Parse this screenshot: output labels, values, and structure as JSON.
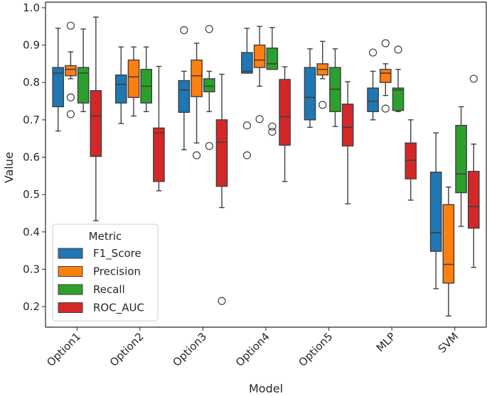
{
  "chart_data": {
    "type": "boxplot",
    "xlabel": "Model",
    "ylabel": "Value",
    "ylim": [
      0.145,
      1.015
    ],
    "yticks": [
      0.2,
      0.3,
      0.4,
      0.5,
      0.6,
      0.7,
      0.8,
      0.9,
      1.0
    ],
    "ytick_labels": [
      "0.2",
      "0.3",
      "0.4",
      "0.5",
      "0.6",
      "0.7",
      "0.8",
      "0.9",
      "1.0"
    ],
    "categories": [
      "Option1",
      "Option2",
      "Option3",
      "Option4",
      "Option5",
      "MLP",
      "SVM"
    ],
    "legend": {
      "title": "Metric",
      "position": "lower-left"
    },
    "series": [
      {
        "name": "F1_Score",
        "color": "#1f77b4",
        "boxes": [
          {
            "whislo": 0.67,
            "q1": 0.735,
            "med": 0.825,
            "q3": 0.84,
            "whishi": 0.945,
            "fliers": []
          },
          {
            "whislo": 0.69,
            "q1": 0.745,
            "med": 0.795,
            "q3": 0.82,
            "whishi": 0.895,
            "fliers": []
          },
          {
            "whislo": 0.62,
            "q1": 0.72,
            "med": 0.78,
            "q3": 0.805,
            "whishi": 0.83,
            "fliers": [
              0.94
            ]
          },
          {
            "whislo": 0.825,
            "q1": 0.825,
            "med": 0.83,
            "q3": 0.88,
            "whishi": 0.945,
            "fliers": [
              0.685,
              0.605
            ]
          },
          {
            "whislo": 0.68,
            "q1": 0.7,
            "med": 0.76,
            "q3": 0.84,
            "whishi": 0.89,
            "fliers": []
          },
          {
            "whislo": 0.7,
            "q1": 0.722,
            "med": 0.75,
            "q3": 0.785,
            "whishi": 0.83,
            "fliers": [
              0.88
            ]
          },
          {
            "whislo": 0.248,
            "q1": 0.348,
            "med": 0.398,
            "q3": 0.56,
            "whishi": 0.665,
            "fliers": []
          }
        ]
      },
      {
        "name": "Precision",
        "color": "#ff7f0e",
        "boxes": [
          {
            "whislo": 0.81,
            "q1": 0.818,
            "med": 0.835,
            "q3": 0.845,
            "whishi": 0.882,
            "fliers": [
              0.952,
              0.76,
              0.715
            ]
          },
          {
            "whislo": 0.71,
            "q1": 0.76,
            "med": 0.815,
            "q3": 0.86,
            "whishi": 0.895,
            "fliers": []
          },
          {
            "whislo": 0.638,
            "q1": 0.762,
            "med": 0.818,
            "q3": 0.86,
            "whishi": 0.905,
            "fliers": [
              0.605
            ]
          },
          {
            "whislo": 0.79,
            "q1": 0.84,
            "med": 0.86,
            "q3": 0.9,
            "whishi": 0.95,
            "fliers": [
              0.702
            ]
          },
          {
            "whislo": 0.81,
            "q1": 0.82,
            "med": 0.835,
            "q3": 0.85,
            "whishi": 0.91,
            "fliers": [
              0.74
            ]
          },
          {
            "whislo": 0.765,
            "q1": 0.8,
            "med": 0.825,
            "q3": 0.835,
            "whishi": 0.85,
            "fliers": [
              0.905,
              0.73
            ]
          },
          {
            "whislo": 0.175,
            "q1": 0.263,
            "med": 0.313,
            "q3": 0.473,
            "whishi": 0.52,
            "fliers": []
          }
        ]
      },
      {
        "name": "Recall",
        "color": "#2ca02c",
        "boxes": [
          {
            "whislo": 0.722,
            "q1": 0.745,
            "med": 0.825,
            "q3": 0.84,
            "whishi": 0.943,
            "fliers": []
          },
          {
            "whislo": 0.722,
            "q1": 0.745,
            "med": 0.79,
            "q3": 0.835,
            "whishi": 0.895,
            "fliers": []
          },
          {
            "whislo": 0.722,
            "q1": 0.775,
            "med": 0.79,
            "q3": 0.81,
            "whishi": 0.83,
            "fliers": [
              0.943,
              0.63
            ]
          },
          {
            "whislo": 0.835,
            "q1": 0.835,
            "med": 0.85,
            "q3": 0.892,
            "whishi": 0.947,
            "fliers": [
              0.682,
              0.668
            ]
          },
          {
            "whislo": 0.682,
            "q1": 0.722,
            "med": 0.782,
            "q3": 0.84,
            "whishi": 0.89,
            "fliers": []
          },
          {
            "whislo": 0.722,
            "q1": 0.725,
            "med": 0.78,
            "q3": 0.785,
            "whishi": 0.835,
            "fliers": [
              0.888
            ]
          },
          {
            "whislo": 0.415,
            "q1": 0.505,
            "med": 0.555,
            "q3": 0.685,
            "whishi": 0.735,
            "fliers": []
          }
        ]
      },
      {
        "name": "ROC_AUC",
        "color": "#d62728",
        "boxes": [
          {
            "whislo": 0.43,
            "q1": 0.602,
            "med": 0.71,
            "q3": 0.778,
            "whishi": 0.975,
            "fliers": []
          },
          {
            "whislo": 0.51,
            "q1": 0.535,
            "med": 0.665,
            "q3": 0.678,
            "whishi": 0.843,
            "fliers": []
          },
          {
            "whislo": 0.465,
            "q1": 0.522,
            "med": 0.64,
            "q3": 0.7,
            "whishi": 0.822,
            "fliers": [
              0.215
            ]
          },
          {
            "whislo": 0.535,
            "q1": 0.632,
            "med": 0.708,
            "q3": 0.808,
            "whishi": 0.842,
            "fliers": []
          },
          {
            "whislo": 0.475,
            "q1": 0.63,
            "med": 0.68,
            "q3": 0.742,
            "whishi": 0.802,
            "fliers": []
          },
          {
            "whislo": 0.485,
            "q1": 0.542,
            "med": 0.592,
            "q3": 0.638,
            "whishi": 0.7,
            "fliers": []
          },
          {
            "whislo": 0.305,
            "q1": 0.41,
            "med": 0.468,
            "q3": 0.562,
            "whishi": 0.635,
            "fliers": [
              0.81
            ]
          }
        ]
      }
    ]
  }
}
